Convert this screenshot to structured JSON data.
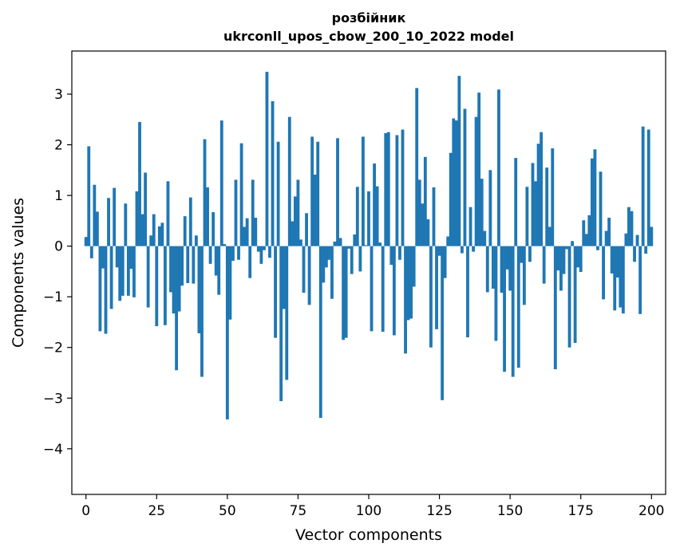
{
  "chart_data": {
    "type": "bar",
    "title_line1": "розбійник",
    "title_line2": "ukrconll_upos_cbow_200_10_2022 model",
    "xlabel": "Vector components",
    "ylabel": "Components values",
    "xlim": [
      -5,
      205
    ],
    "ylim": [
      -4.9,
      3.85
    ],
    "xticks": [
      0,
      25,
      50,
      75,
      100,
      125,
      150,
      175,
      200
    ],
    "yticks": [
      -4,
      -3,
      -2,
      -1,
      0,
      1,
      2,
      3
    ],
    "ytick_labels": [
      "−4",
      "−3",
      "−2",
      "−1",
      "0",
      "1",
      "2",
      "3"
    ],
    "grid": false,
    "bar_color": "#1f77b4",
    "values": [
      0.18,
      1.97,
      -0.24,
      1.21,
      0.68,
      -1.68,
      -0.44,
      -1.73,
      0.95,
      -1.24,
      1.15,
      -0.42,
      -1.08,
      -0.98,
      0.84,
      -0.98,
      -0.45,
      -1.01,
      1.08,
      2.45,
      0.63,
      1.45,
      -1.21,
      0.21,
      0.63,
      -1.58,
      0.39,
      0.46,
      -1.56,
      1.28,
      -0.91,
      -1.33,
      -2.45,
      -1.29,
      -0.78,
      0.59,
      -0.73,
      0.96,
      -0.74,
      0.21,
      -1.72,
      -2.58,
      2.11,
      1.16,
      -0.35,
      0.67,
      -0.58,
      -0.96,
      2.48,
      0.04,
      -3.42,
      -1.45,
      -0.29,
      1.31,
      -0.27,
      2.03,
      0.38,
      0.55,
      -0.63,
      1.31,
      0.56,
      -0.11,
      -0.35,
      -0.08,
      3.44,
      -0.23,
      2.86,
      -1.81,
      2.06,
      -3.06,
      -1.24,
      -2.64,
      2.55,
      0.49,
      0.98,
      1.31,
      0.13,
      -0.92,
      0.65,
      -1.16,
      2.16,
      1.41,
      2.06,
      -3.39,
      -0.72,
      -0.42,
      -0.27,
      -1.04,
      0.09,
      2.13,
      0.16,
      -1.85,
      -1.81,
      -0.05,
      -0.55,
      0.23,
      1.17,
      -0.5,
      2.16,
      0.02,
      1.08,
      -1.68,
      1.63,
      1.18,
      0.07,
      -1.69,
      2.23,
      2.25,
      -0.37,
      -1.76,
      2.19,
      -0.27,
      2.3,
      -2.12,
      -1.46,
      -1.43,
      -0.8,
      3.12,
      1.31,
      0.84,
      1.76,
      0.53,
      -2.0,
      1.16,
      -1.64,
      -0.19,
      -3.04,
      -0.63,
      0.19,
      1.84,
      2.52,
      2.48,
      3.36,
      -0.14,
      2.71,
      -1.8,
      0.77,
      -0.11,
      2.55,
      3.03,
      1.33,
      0.3,
      -0.91,
      1.5,
      -0.84,
      -1.87,
      3.09,
      -0.92,
      -2.48,
      -0.46,
      -0.88,
      -2.58,
      1.74,
      -2.4,
      -0.33,
      -1.16,
      1.17,
      -0.31,
      1.64,
      1.28,
      2.02,
      2.25,
      -0.74,
      1.55,
      0.38,
      1.93,
      -2.43,
      -0.48,
      -0.88,
      -0.55,
      -0.06,
      -2.0,
      0.1,
      -1.91,
      -0.42,
      -0.51,
      0.51,
      0.24,
      0.61,
      1.73,
      1.91,
      -0.08,
      1.47,
      -1.05,
      0.3,
      0.56,
      -0.54,
      -1.27,
      -0.62,
      -1.21,
      -1.33,
      0.25,
      0.77,
      0.69,
      -0.31,
      0.22,
      -1.34,
      2.36,
      -0.15,
      2.3,
      0.38
    ]
  }
}
